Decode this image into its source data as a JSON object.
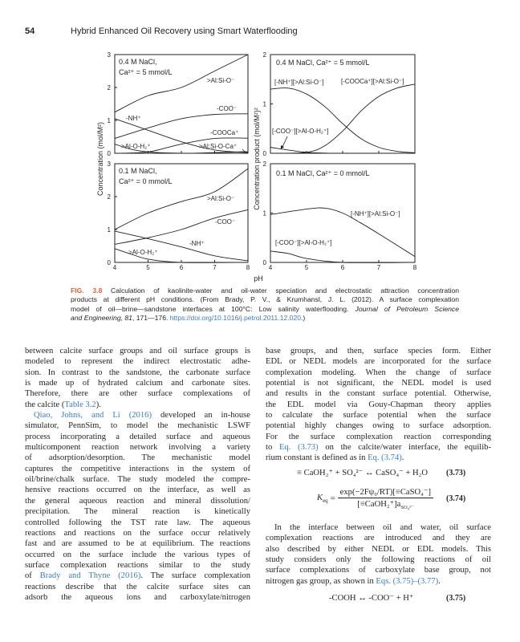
{
  "header": {
    "page_number": "54",
    "running_title": "Hybrid Enhanced Oil Recovery using Smart Waterflooding"
  },
  "figure": {
    "x_axis_label": "pH",
    "left_y_label": "Concentration (mol/M²)",
    "right_y_label": "Concentration product (mol/M²)²",
    "caption": [
      [
        {
          "t": "FIG. 3.8",
          "s": "label"
        },
        {
          "t": " Calculation of kaolinite-water and oil-water speciation and electrostatic attraction concentration"
        }
      ],
      [
        {
          "t": "products at different pH conditions. (From Brady, P. V., & Krumhansl, J. L. (2012). A surface complexation"
        }
      ],
      [
        {
          "t": "model of oil—brine—sandstone interfaces at 100°C: Low salinity waterflooding. "
        },
        {
          "t": "Journal of Petroleum Science",
          "s": "italic"
        }
      ],
      [
        {
          "t": "and Engineering, 81",
          "s": "italic"
        },
        {
          "t": ", 171—176. "
        },
        {
          "t": "https://doi.org/10.1016/j.petrol.2011.12.020",
          "s": "link"
        },
        {
          "t": ".)"
        }
      ]
    ]
  },
  "chart_data": [
    {
      "type": "line",
      "panel": "top-left",
      "title_lines": [
        "0.4 M NaCl,",
        "Ca²⁺ = 5 mmol/L"
      ],
      "xlim": [
        4,
        8
      ],
      "ylim": [
        0,
        3
      ],
      "x_ticks": [
        "4",
        "5",
        "6",
        "7",
        "8"
      ],
      "y_ticks": [
        "0",
        "1",
        "2",
        "3"
      ],
      "series": [
        {
          "name": ">Al:Si-O⁻",
          "points": [
            [
              4,
              1.25
            ],
            [
              5,
              1.75
            ],
            [
              6,
              2.0
            ],
            [
              7,
              2.5
            ],
            [
              8,
              3.0
            ]
          ]
        },
        {
          "name": "-COO⁻",
          "points": [
            [
              4,
              0.45
            ],
            [
              5,
              0.77
            ],
            [
              6,
              1.05
            ],
            [
              7,
              1.18
            ],
            [
              8,
              1.2
            ]
          ]
        },
        {
          "name": "-NH⁺",
          "points": [
            [
              4,
              1.05
            ],
            [
              5,
              0.7
            ],
            [
              6,
              0.35
            ],
            [
              7,
              0.1
            ],
            [
              8,
              0.02
            ]
          ]
        },
        {
          "name": "-COOCa⁺",
          "points": [
            [
              4,
              0.0
            ],
            [
              5,
              0.04
            ],
            [
              6,
              0.28
            ],
            [
              7,
              0.45
            ],
            [
              8,
              0.46
            ]
          ]
        },
        {
          "name": ">Al-O-H₂⁺",
          "points": [
            [
              4,
              0.28
            ],
            [
              4.5,
              0.12
            ],
            [
              5,
              0.04
            ],
            [
              6,
              0.0
            ],
            [
              8,
              0.0
            ]
          ]
        },
        {
          "name": ">Al:Si-O-Ca⁺",
          "points": [
            [
              4,
              0.0
            ],
            [
              6,
              0.0
            ],
            [
              7,
              0.02
            ],
            [
              8,
              0.05
            ]
          ]
        }
      ]
    },
    {
      "type": "line",
      "panel": "bottom-left",
      "title_lines": [
        "0.1 M NaCl,",
        "Ca²⁺ = 0 mmol/L"
      ],
      "xlim": [
        4,
        8
      ],
      "ylim": [
        0,
        3
      ],
      "x_ticks": [
        "4",
        "5",
        "6",
        "7",
        "8"
      ],
      "y_ticks": [
        "0",
        "1",
        "2",
        "3"
      ],
      "series": [
        {
          "name": ">Al:Si-O⁻",
          "points": [
            [
              4,
              1.0
            ],
            [
              5,
              1.5
            ],
            [
              6,
              1.85
            ],
            [
              7,
              2.15
            ],
            [
              8,
              2.85
            ]
          ]
        },
        {
          "name": "-COO⁻",
          "points": [
            [
              4,
              0.55
            ],
            [
              5,
              0.75
            ],
            [
              6,
              1.0
            ],
            [
              7,
              1.35
            ],
            [
              8,
              1.6
            ]
          ]
        },
        {
          "name": "-NH⁺",
          "points": [
            [
              4,
              0.95
            ],
            [
              5,
              0.72
            ],
            [
              6,
              0.47
            ],
            [
              7,
              0.2
            ],
            [
              8,
              0.05
            ]
          ]
        },
        {
          "name": ">Al-O-H₂⁺",
          "points": [
            [
              4,
              0.42
            ],
            [
              4.5,
              0.25
            ],
            [
              5,
              0.1
            ],
            [
              6,
              0.0
            ],
            [
              8,
              0.0
            ]
          ]
        }
      ]
    },
    {
      "type": "line",
      "panel": "top-right",
      "title_lines": [
        "0.4 M NaCl, Ca²⁺ = 5 mmol/L"
      ],
      "xlim": [
        4,
        8
      ],
      "ylim": [
        0,
        2
      ],
      "x_ticks": [
        "4",
        "5",
        "6",
        "7",
        "8"
      ],
      "y_ticks": [
        "0",
        "1",
        "2"
      ],
      "series": [
        {
          "name": "[-NH⁺][>Al:Si-O⁻]",
          "points": [
            [
              4,
              1.3
            ],
            [
              4.5,
              1.32
            ],
            [
              5,
              1.2
            ],
            [
              5.5,
              0.95
            ],
            [
              6,
              0.6
            ],
            [
              6.5,
              0.3
            ],
            [
              7,
              0.12
            ],
            [
              7.5,
              0.04
            ],
            [
              8,
              0.01
            ]
          ]
        },
        {
          "name": "[-COOCa⁺][>Al:Si-O⁻]",
          "points": [
            [
              4,
              0.0
            ],
            [
              5,
              0.02
            ],
            [
              5.5,
              0.15
            ],
            [
              6,
              0.45
            ],
            [
              6.5,
              0.85
            ],
            [
              7,
              1.15
            ],
            [
              7.5,
              1.32
            ],
            [
              8,
              1.4
            ]
          ]
        },
        {
          "name": "[-COO⁻][>Al-O-H₂⁺]",
          "points": [
            [
              4,
              0.12
            ],
            [
              5,
              0.02
            ],
            [
              6,
              0.0
            ],
            [
              8,
              0.0
            ]
          ]
        }
      ]
    },
    {
      "type": "line",
      "panel": "bottom-right",
      "title_lines": [
        "0.1 M NaCl, Ca²⁺ = 0 mmol/L"
      ],
      "xlim": [
        4,
        8
      ],
      "ylim": [
        0,
        2
      ],
      "x_ticks": [
        "4",
        "5",
        "6",
        "7",
        "8"
      ],
      "y_ticks": [
        "0",
        "1",
        "2"
      ],
      "series": [
        {
          "name": "[-NH⁺][>Al:Si-O⁻]",
          "points": [
            [
              4,
              0.97
            ],
            [
              5,
              1.08
            ],
            [
              5.5,
              1.1
            ],
            [
              6,
              1.0
            ],
            [
              6.5,
              0.8
            ],
            [
              7,
              0.58
            ],
            [
              7.5,
              0.35
            ],
            [
              8,
              0.12
            ]
          ]
        },
        {
          "name": "[-COO⁻][>Al-O-H₂⁺]",
          "points": [
            [
              4,
              0.23
            ],
            [
              4.5,
              0.18
            ],
            [
              5,
              0.08
            ],
            [
              6,
              0.0
            ],
            [
              8,
              0.0
            ]
          ]
        }
      ]
    }
  ],
  "left_column": [
    {
      "segs": [
        {
          "t": "between calcite surface groups and oil surface groups is"
        }
      ]
    },
    {
      "segs": [
        {
          "t": "modeled to represent the indirect electrostatic adhe-"
        }
      ]
    },
    {
      "segs": [
        {
          "t": "sion. In contrast to the sandstone, the carbonate surface"
        }
      ]
    },
    {
      "segs": [
        {
          "t": "is made up of hydrated calcium and carbonate sites."
        }
      ]
    },
    {
      "segs": [
        {
          "t": "Therefore, there are other surface complexations of"
        }
      ]
    },
    {
      "segs": [
        {
          "t": "the calcite ("
        },
        {
          "t": "Table 3.2",
          "link": true
        },
        {
          "t": ")."
        }
      ],
      "last": true
    },
    {
      "segs": [
        {
          "t": "Qiao, Johns, and Li (2016)",
          "link": true
        },
        {
          "t": " developed an in-house"
        }
      ],
      "indent": true
    },
    {
      "segs": [
        {
          "t": "simulator, PennSim, to model the mechanistic LSWF"
        }
      ]
    },
    {
      "segs": [
        {
          "t": "process incorporating a detailed surface and aqueous"
        }
      ]
    },
    {
      "segs": [
        {
          "t": "multicomponent reaction network involving a variety"
        }
      ]
    },
    {
      "segs": [
        {
          "t": "of adsorption/desorption. The mechanistic model"
        }
      ]
    },
    {
      "segs": [
        {
          "t": "captures the competitive interactions in the system of"
        }
      ]
    },
    {
      "segs": [
        {
          "t": "oil/brine/chalk surface. The study modeled the compre-"
        }
      ]
    },
    {
      "segs": [
        {
          "t": "hensive reactions occurred on the interface, as well as"
        }
      ]
    },
    {
      "segs": [
        {
          "t": "the general aqueous reaction and mineral dissolution/"
        }
      ]
    },
    {
      "segs": [
        {
          "t": "precipitation. The mineral reaction is kinetically"
        }
      ]
    },
    {
      "segs": [
        {
          "t": "controlled following the TST rate law. The aqueous"
        }
      ]
    },
    {
      "segs": [
        {
          "t": "reactions and reactions on the surface occur relatively"
        }
      ]
    },
    {
      "segs": [
        {
          "t": "fast and are assumed to be at equilibrium. The reactions"
        }
      ]
    },
    {
      "segs": [
        {
          "t": "occurred on the surface include the various types of"
        }
      ]
    },
    {
      "segs": [
        {
          "t": "surface complexation reactions similar to the study"
        }
      ]
    },
    {
      "segs": [
        {
          "t": "of "
        },
        {
          "t": "Brady and Thyne (2016)",
          "link": true
        },
        {
          "t": ". The surface complexation"
        }
      ]
    },
    {
      "segs": [
        {
          "t": "reactions describe that the calcite surface sites can"
        }
      ]
    },
    {
      "segs": [
        {
          "t": "adsorb the aqueous ions and carboxylate/nitrogen"
        }
      ]
    }
  ],
  "right_column": [
    {
      "segs": [
        {
          "t": "base groups, and then, surface species form. Either"
        }
      ]
    },
    {
      "segs": [
        {
          "t": "EDL or NEDL models are incorporated for the surface"
        }
      ]
    },
    {
      "segs": [
        {
          "t": "complexation modeling. When the change of surface"
        }
      ]
    },
    {
      "segs": [
        {
          "t": "potential is not significant, the NEDL model is used"
        }
      ]
    },
    {
      "segs": [
        {
          "t": "and results in the constant surface potential. Otherwise,"
        }
      ]
    },
    {
      "segs": [
        {
          "t": "the EDL model via Gouy-Chapman theory applies"
        }
      ]
    },
    {
      "segs": [
        {
          "t": "to calculate the surface potential when the surface"
        }
      ]
    },
    {
      "segs": [
        {
          "t": "potential highly changes owing to surface adsorption."
        }
      ]
    },
    {
      "segs": [
        {
          "t": "For the surface complexation reaction corresponding"
        }
      ]
    },
    {
      "segs": [
        {
          "t": "to "
        },
        {
          "t": "Eq. (3.73)",
          "link": true
        },
        {
          "t": " on the calcite/water interface, the equilib-"
        }
      ]
    },
    {
      "segs": [
        {
          "t": "rium constant is defined as in "
        },
        {
          "t": "Eq. (3.74)",
          "link": true
        },
        {
          "t": "."
        }
      ],
      "last": true
    }
  ],
  "right_paragraph_2": [
    {
      "segs": [
        {
          "t": "In the interface between oil and water, oil surface"
        }
      ],
      "indent": true
    },
    {
      "segs": [
        {
          "t": "complexation reactions are introduced and they are"
        }
      ]
    },
    {
      "segs": [
        {
          "t": "also described by either NEDL or EDL models. This"
        }
      ]
    },
    {
      "segs": [
        {
          "t": "study considers only the following reactions of oil"
        }
      ]
    },
    {
      "segs": [
        {
          "t": "surface complexations of carboxylate base group, not"
        }
      ]
    },
    {
      "segs": [
        {
          "t": "nitrogen gas group, as shown in "
        },
        {
          "t": "Eqs. (3.75)–(3.77)",
          "link": true
        },
        {
          "t": "."
        }
      ],
      "last": true
    }
  ],
  "equations": {
    "eq373": {
      "text": "≡ CaOH₂⁺ + SO₄²⁻ ↔ CaSO₄⁻ + H₂O",
      "number": "(3.73)"
    },
    "eq374": {
      "lhs": "K",
      "lhs_sub": "eq",
      "eq_sign": "=",
      "numerator": "exp(−2Fψ₀/RT)[≡CaSO₄⁻]",
      "denominator": "[≡CaOH₂⁺]a",
      "denominator_sub": "SO₄²⁻",
      "number": "(3.74)"
    },
    "eq375": {
      "text": "-COOH ↔ -COO⁻ + H⁺",
      "number": "(3.75)"
    }
  },
  "colors": {
    "figure_label": "#e8602c",
    "link": "#3a7dbf",
    "text": "#231f20"
  }
}
